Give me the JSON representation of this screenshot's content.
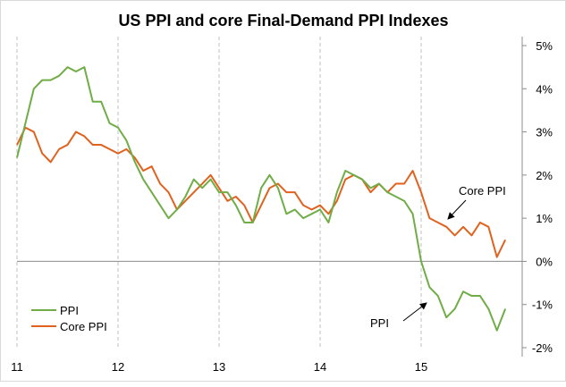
{
  "chart_data": {
    "type": "line",
    "title": "US PPI and core Final-Demand PPI Indexes",
    "xlabel": "",
    "ylabel": "",
    "x_tick_labels": [
      "11",
      "12",
      "13",
      "14",
      "15"
    ],
    "x_start_year": 2011,
    "months": 60,
    "y_tick_labels": [
      "5%",
      "4%",
      "3%",
      "2%",
      "1%",
      "0%",
      "-1%",
      "-2%"
    ],
    "y_ticks": [
      5,
      4,
      3,
      2,
      1,
      0,
      -1,
      -2
    ],
    "ylim": [
      -2,
      5
    ],
    "grid": "dashed vertical at year starts",
    "legend_position": "bottom-left",
    "series": [
      {
        "name": "PPI",
        "color": "#70ad47",
        "values": [
          2.4,
          3.2,
          4.0,
          4.2,
          4.2,
          4.3,
          4.5,
          4.4,
          4.5,
          3.7,
          3.7,
          3.2,
          3.1,
          2.8,
          2.3,
          1.9,
          1.6,
          1.3,
          1.0,
          1.2,
          1.5,
          1.9,
          1.7,
          1.9,
          1.6,
          1.6,
          1.3,
          0.9,
          0.9,
          1.7,
          2.0,
          1.7,
          1.1,
          1.2,
          1.0,
          1.1,
          1.2,
          0.9,
          1.6,
          2.1,
          2.0,
          1.9,
          1.7,
          1.8,
          1.6,
          1.5,
          1.4,
          1.1,
          0.0,
          -0.6,
          -0.8,
          -1.3,
          -1.1,
          -0.7,
          -0.8,
          -0.8,
          -1.1,
          -1.6,
          -1.1
        ]
      },
      {
        "name": "Core PPI",
        "color": "#e0621e",
        "values": [
          2.7,
          3.1,
          3.0,
          2.5,
          2.3,
          2.6,
          2.7,
          3.0,
          2.9,
          2.7,
          2.7,
          2.6,
          2.5,
          2.6,
          2.4,
          2.1,
          2.2,
          1.8,
          1.6,
          1.2,
          1.4,
          1.6,
          1.8,
          2.0,
          1.7,
          1.4,
          1.5,
          1.3,
          0.9,
          1.3,
          1.7,
          1.8,
          1.6,
          1.6,
          1.3,
          1.2,
          1.3,
          1.1,
          1.4,
          1.9,
          2.0,
          1.9,
          1.6,
          1.8,
          1.6,
          1.8,
          1.8,
          2.1,
          1.6,
          1.0,
          0.9,
          0.8,
          0.6,
          0.8,
          0.6,
          0.9,
          0.8,
          0.1,
          0.5
        ]
      }
    ],
    "annotations": [
      {
        "text": "Core PPI",
        "points_to": "Core PPI",
        "at_month": 50
      },
      {
        "text": "PPI",
        "points_to": "PPI",
        "at_month": 49
      }
    ]
  }
}
